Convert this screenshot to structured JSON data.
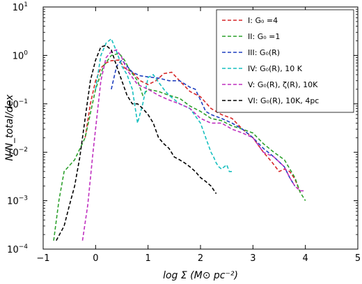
{
  "chart_data": {
    "type": "line",
    "title": "",
    "xlabel": "log Σ (M⊙ pc⁻²)",
    "ylabel": "N/N_total/dex",
    "xlim": [
      -1,
      5
    ],
    "ylim": [
      0.0001,
      10
    ],
    "yscale": "log",
    "grid": false,
    "legend_position": "top-right",
    "x_ticks": [
      {
        "value": -1,
        "label": "−1"
      },
      {
        "value": 0,
        "label": "0"
      },
      {
        "value": 1,
        "label": "1"
      },
      {
        "value": 2,
        "label": "2"
      },
      {
        "value": 3,
        "label": "3"
      },
      {
        "value": 4,
        "label": "4"
      },
      {
        "value": 5,
        "label": "5"
      }
    ],
    "y_ticks": [
      {
        "value": 0.0001,
        "base": "10",
        "exp": "-4"
      },
      {
        "value": 0.001,
        "base": "10",
        "exp": "-3"
      },
      {
        "value": 0.01,
        "base": "10",
        "exp": "-2"
      },
      {
        "value": 0.1,
        "base": "10",
        "exp": "-1"
      },
      {
        "value": 1,
        "base": "10",
        "exp": "0"
      },
      {
        "value": 10,
        "base": "10",
        "exp": "1"
      }
    ],
    "series": [
      {
        "name": "I: G₀ =4",
        "color": "#d62728",
        "points": [
          [
            -0.2,
            0.02
          ],
          [
            -0.1,
            0.1
          ],
          [
            0.0,
            0.3
          ],
          [
            0.1,
            0.55
          ],
          [
            0.2,
            0.7
          ],
          [
            0.3,
            0.78
          ],
          [
            0.45,
            0.8
          ],
          [
            0.55,
            0.55
          ],
          [
            0.7,
            0.45
          ],
          [
            0.85,
            0.3
          ],
          [
            1.0,
            0.25
          ],
          [
            1.15,
            0.3
          ],
          [
            1.3,
            0.42
          ],
          [
            1.45,
            0.45
          ],
          [
            1.6,
            0.3
          ],
          [
            1.8,
            0.18
          ],
          [
            2.0,
            0.14
          ],
          [
            2.2,
            0.08
          ],
          [
            2.4,
            0.06
          ],
          [
            2.6,
            0.05
          ],
          [
            2.8,
            0.03
          ],
          [
            3.0,
            0.02
          ],
          [
            3.2,
            0.01
          ],
          [
            3.35,
            0.0065
          ],
          [
            3.5,
            0.004
          ],
          [
            3.6,
            0.0045
          ],
          [
            3.7,
            0.004
          ],
          [
            3.8,
            0.0028
          ],
          [
            3.9,
            0.0015
          ]
        ]
      },
      {
        "name": "II: G₀ =1",
        "color": "#2ca02c",
        "points": [
          [
            -0.8,
            0.00015
          ],
          [
            -0.7,
            0.001
          ],
          [
            -0.6,
            0.004
          ],
          [
            -0.4,
            0.007
          ],
          [
            -0.2,
            0.02
          ],
          [
            0.0,
            0.2
          ],
          [
            0.15,
            0.6
          ],
          [
            0.3,
            1.0
          ],
          [
            0.45,
            1.1
          ],
          [
            0.55,
            0.8
          ],
          [
            0.65,
            0.5
          ],
          [
            0.8,
            0.3
          ],
          [
            0.9,
            0.15
          ],
          [
            1.0,
            0.2
          ],
          [
            1.2,
            0.18
          ],
          [
            1.4,
            0.15
          ],
          [
            1.6,
            0.13
          ],
          [
            1.8,
            0.09
          ],
          [
            2.0,
            0.07
          ],
          [
            2.2,
            0.05
          ],
          [
            2.4,
            0.045
          ],
          [
            2.6,
            0.035
          ],
          [
            2.8,
            0.03
          ],
          [
            3.0,
            0.025
          ],
          [
            3.2,
            0.015
          ],
          [
            3.4,
            0.01
          ],
          [
            3.6,
            0.007
          ],
          [
            3.8,
            0.003
          ],
          [
            3.9,
            0.0015
          ],
          [
            4.0,
            0.001
          ]
        ]
      },
      {
        "name": "III: G₀(R)",
        "color": "#1f3fbf",
        "points": [
          [
            0.3,
            0.2
          ],
          [
            0.4,
            0.6
          ],
          [
            0.5,
            0.8
          ],
          [
            0.6,
            0.6
          ],
          [
            0.7,
            0.45
          ],
          [
            0.85,
            0.38
          ],
          [
            1.0,
            0.36
          ],
          [
            1.2,
            0.34
          ],
          [
            1.4,
            0.3
          ],
          [
            1.6,
            0.3
          ],
          [
            1.8,
            0.22
          ],
          [
            1.9,
            0.2
          ],
          [
            2.0,
            0.12
          ],
          [
            2.1,
            0.07
          ],
          [
            2.2,
            0.06
          ],
          [
            2.4,
            0.05
          ],
          [
            2.6,
            0.04
          ],
          [
            2.8,
            0.03
          ],
          [
            3.0,
            0.02
          ],
          [
            3.2,
            0.012
          ],
          [
            3.4,
            0.008
          ],
          [
            3.6,
            0.005
          ],
          [
            3.7,
            0.003
          ],
          [
            3.8,
            0.002
          ]
        ]
      },
      {
        "name": "IV: G₀(R), 10 K",
        "color": "#17bfbf",
        "points": [
          [
            0.0,
            0.2
          ],
          [
            0.1,
            1.0
          ],
          [
            0.2,
            1.8
          ],
          [
            0.3,
            2.2
          ],
          [
            0.4,
            1.2
          ],
          [
            0.5,
            0.6
          ],
          [
            0.6,
            0.4
          ],
          [
            0.7,
            0.2
          ],
          [
            0.8,
            0.04
          ],
          [
            0.9,
            0.1
          ],
          [
            1.0,
            0.35
          ],
          [
            1.1,
            0.4
          ],
          [
            1.2,
            0.28
          ],
          [
            1.3,
            0.2
          ],
          [
            1.4,
            0.15
          ],
          [
            1.6,
            0.1
          ],
          [
            1.8,
            0.08
          ],
          [
            2.0,
            0.04
          ],
          [
            2.1,
            0.02
          ],
          [
            2.2,
            0.01
          ],
          [
            2.25,
            0.008
          ],
          [
            2.3,
            0.006
          ],
          [
            2.35,
            0.005
          ],
          [
            2.4,
            0.0045
          ],
          [
            2.5,
            0.0055
          ],
          [
            2.55,
            0.004
          ],
          [
            2.6,
            0.004
          ]
        ]
      },
      {
        "name": "V: G₀(R), ζ(R), 10K",
        "color": "#bf2fbf",
        "points": [
          [
            -0.25,
            0.00015
          ],
          [
            -0.15,
            0.0008
          ],
          [
            -0.05,
            0.01
          ],
          [
            0.1,
            0.3
          ],
          [
            0.2,
            0.9
          ],
          [
            0.3,
            1.2
          ],
          [
            0.4,
            1.3
          ],
          [
            0.5,
            0.9
          ],
          [
            0.6,
            0.5
          ],
          [
            0.8,
            0.25
          ],
          [
            1.0,
            0.2
          ],
          [
            1.2,
            0.15
          ],
          [
            1.4,
            0.12
          ],
          [
            1.6,
            0.1
          ],
          [
            1.8,
            0.08
          ],
          [
            2.0,
            0.05
          ],
          [
            2.2,
            0.04
          ],
          [
            2.4,
            0.04
          ],
          [
            2.6,
            0.03
          ],
          [
            2.8,
            0.025
          ],
          [
            3.0,
            0.02
          ],
          [
            3.2,
            0.01
          ],
          [
            3.4,
            0.008
          ],
          [
            3.6,
            0.005
          ],
          [
            3.7,
            0.003
          ],
          [
            3.8,
            0.002
          ],
          [
            3.9,
            0.0016
          ],
          [
            4.0,
            0.0016
          ]
        ]
      },
      {
        "name": "VI: G₀(R), 10K, 4pc",
        "color": "#000000",
        "points": [
          [
            -0.75,
            0.00015
          ],
          [
            -0.6,
            0.0003
          ],
          [
            -0.5,
            0.0008
          ],
          [
            -0.4,
            0.002
          ],
          [
            -0.3,
            0.008
          ],
          [
            -0.2,
            0.05
          ],
          [
            -0.1,
            0.3
          ],
          [
            0.0,
            0.8
          ],
          [
            0.1,
            1.5
          ],
          [
            0.2,
            1.6
          ],
          [
            0.3,
            1.3
          ],
          [
            0.4,
            0.6
          ],
          [
            0.5,
            0.3
          ],
          [
            0.6,
            0.15
          ],
          [
            0.7,
            0.1
          ],
          [
            0.8,
            0.1
          ],
          [
            0.9,
            0.08
          ],
          [
            1.0,
            0.06
          ],
          [
            1.1,
            0.04
          ],
          [
            1.2,
            0.02
          ],
          [
            1.3,
            0.015
          ],
          [
            1.4,
            0.012
          ],
          [
            1.5,
            0.008
          ],
          [
            1.6,
            0.007
          ],
          [
            1.7,
            0.006
          ],
          [
            1.8,
            0.005
          ],
          [
            1.9,
            0.004
          ],
          [
            2.0,
            0.003
          ],
          [
            2.1,
            0.0025
          ],
          [
            2.2,
            0.002
          ],
          [
            2.3,
            0.0014
          ]
        ]
      }
    ]
  }
}
